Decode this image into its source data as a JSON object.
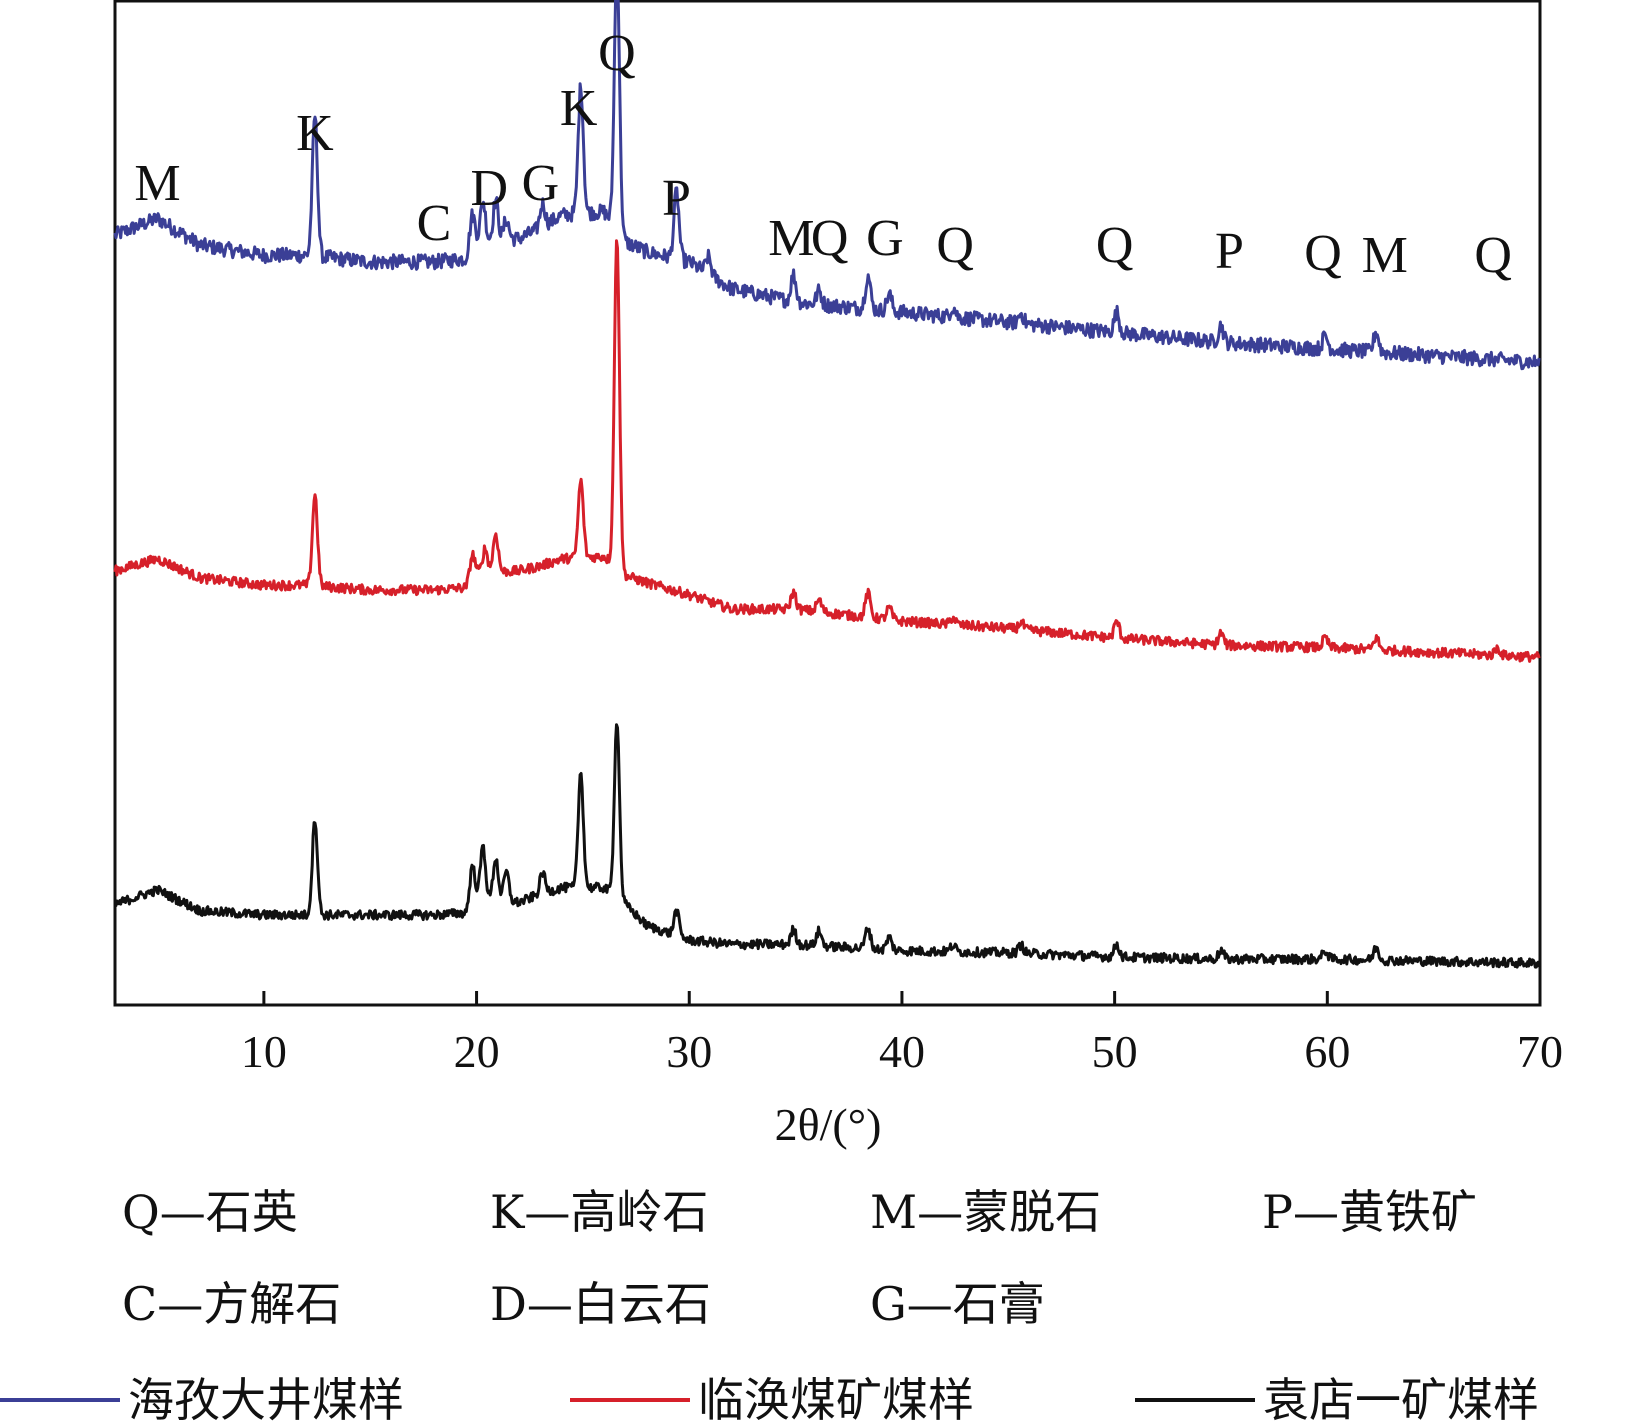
{
  "chart_data": {
    "type": "line",
    "xlabel": "2θ/(°)",
    "ylabel": "",
    "xlim": [
      3,
      70
    ],
    "xticks": [
      10,
      20,
      30,
      40,
      50,
      60,
      70
    ],
    "yticks": false,
    "grid": false,
    "legend_placement": "bottom",
    "colors": {
      "blue": "#3b3f96",
      "red": "#d6202a",
      "black": "#111111"
    },
    "mineral_key": [
      {
        "symbol": "Q",
        "label": "Q—石英"
      },
      {
        "symbol": "K",
        "label": "K—高岭石"
      },
      {
        "symbol": "M",
        "label": "M—蒙脱石"
      },
      {
        "symbol": "P",
        "label": "P—黄铁矿"
      },
      {
        "symbol": "C",
        "label": "C—方解石"
      },
      {
        "symbol": "D",
        "label": "D—白云石"
      },
      {
        "symbol": "G",
        "label": "G—石膏"
      }
    ],
    "peak_annotations": [
      {
        "label": "M",
        "x": 5.0
      },
      {
        "label": "K",
        "x": 12.4
      },
      {
        "label": "C",
        "x": 18.0
      },
      {
        "label": "D",
        "x": 20.6
      },
      {
        "label": "G",
        "x": 23.0
      },
      {
        "label": "K",
        "x": 24.8
      },
      {
        "label": "Q",
        "x": 26.6
      },
      {
        "label": "P",
        "x": 29.4
      },
      {
        "label": "M",
        "x": 34.8
      },
      {
        "label": "Q",
        "x": 36.6
      },
      {
        "label": "G",
        "x": 39.2
      },
      {
        "label": "Q",
        "x": 42.5
      },
      {
        "label": "Q",
        "x": 50.0
      },
      {
        "label": "P",
        "x": 55.4
      },
      {
        "label": "Q",
        "x": 59.8
      },
      {
        "label": "M",
        "x": 62.7
      },
      {
        "label": "Q",
        "x": 67.8
      }
    ],
    "series": [
      {
        "name": "海孜大井煤样",
        "color": "#3b3f96",
        "baseline": [
          [
            3,
            0.08
          ],
          [
            5,
            0.13
          ],
          [
            7,
            0.05
          ],
          [
            10,
            0.02
          ],
          [
            12,
            0.02
          ],
          [
            15,
            0.0
          ],
          [
            18,
            0.0
          ],
          [
            19.5,
            0.01
          ],
          [
            20,
            0.06
          ],
          [
            22,
            0.07
          ],
          [
            23,
            0.1
          ],
          [
            24,
            0.14
          ],
          [
            26,
            0.15
          ],
          [
            27,
            0.06
          ],
          [
            28,
            0.03
          ],
          [
            30,
            0.0
          ],
          [
            32,
            -0.08
          ],
          [
            35,
            -0.12
          ],
          [
            40,
            -0.15
          ],
          [
            45,
            -0.18
          ],
          [
            50,
            -0.21
          ],
          [
            55,
            -0.24
          ],
          [
            60,
            -0.26
          ],
          [
            65,
            -0.28
          ],
          [
            70,
            -0.3
          ]
        ],
        "peaks": [
          [
            12.4,
            0.42
          ],
          [
            19.8,
            0.1
          ],
          [
            20.3,
            0.12
          ],
          [
            20.9,
            0.12
          ],
          [
            21.4,
            0.06
          ],
          [
            23.1,
            0.07
          ],
          [
            24.9,
            0.38
          ],
          [
            26.6,
            0.8
          ],
          [
            29.4,
            0.2
          ],
          [
            30.9,
            0.05
          ],
          [
            34.9,
            0.08
          ],
          [
            36.1,
            0.04
          ],
          [
            38.4,
            0.1
          ],
          [
            39.4,
            0.05
          ],
          [
            42.4,
            0.03
          ],
          [
            45.6,
            0.03
          ],
          [
            50.1,
            0.06
          ],
          [
            55.0,
            0.05
          ],
          [
            59.9,
            0.04
          ],
          [
            62.3,
            0.06
          ]
        ],
        "noise": 0.022
      },
      {
        "name": "临涣煤矿煤样",
        "color": "#d6202a",
        "baseline": [
          [
            3,
            0.08
          ],
          [
            5,
            0.13
          ],
          [
            7,
            0.05
          ],
          [
            10,
            0.02
          ],
          [
            12,
            0.02
          ],
          [
            15,
            0.0
          ],
          [
            18,
            0.0
          ],
          [
            19.5,
            0.01
          ],
          [
            20,
            0.07
          ],
          [
            22,
            0.08
          ],
          [
            23,
            0.1
          ],
          [
            24,
            0.13
          ],
          [
            26,
            0.14
          ],
          [
            27,
            0.06
          ],
          [
            28,
            0.03
          ],
          [
            30,
            -0.02
          ],
          [
            32,
            -0.08
          ],
          [
            35,
            -0.08
          ],
          [
            40,
            -0.13
          ],
          [
            45,
            -0.16
          ],
          [
            50,
            -0.2
          ],
          [
            55,
            -0.23
          ],
          [
            60,
            -0.24
          ],
          [
            65,
            -0.26
          ],
          [
            70,
            -0.28
          ]
        ],
        "peaks": [
          [
            12.4,
            0.38
          ],
          [
            19.8,
            0.1
          ],
          [
            20.4,
            0.1
          ],
          [
            20.9,
            0.16
          ],
          [
            24.9,
            0.32
          ],
          [
            26.6,
            1.38
          ],
          [
            34.9,
            0.07
          ],
          [
            36.1,
            0.05
          ],
          [
            38.4,
            0.1
          ],
          [
            39.4,
            0.05
          ],
          [
            42.4,
            0.03
          ],
          [
            45.6,
            0.03
          ],
          [
            50.1,
            0.07
          ],
          [
            55.0,
            0.05
          ],
          [
            59.9,
            0.04
          ],
          [
            62.3,
            0.05
          ],
          [
            68.0,
            0.03
          ]
        ],
        "noise": 0.02
      },
      {
        "name": "袁店一矿煤样",
        "color": "#111111",
        "baseline": [
          [
            3,
            0.05
          ],
          [
            5,
            0.12
          ],
          [
            7,
            0.02
          ],
          [
            10,
            0.0
          ],
          [
            12,
            0.0
          ],
          [
            15,
            0.0
          ],
          [
            18,
            0.0
          ],
          [
            19.5,
            0.01
          ],
          [
            20,
            0.08
          ],
          [
            22,
            0.06
          ],
          [
            23,
            0.1
          ],
          [
            24,
            0.13
          ],
          [
            26,
            0.13
          ],
          [
            27,
            0.05
          ],
          [
            28,
            -0.05
          ],
          [
            30,
            -0.12
          ],
          [
            32,
            -0.14
          ],
          [
            35,
            -0.14
          ],
          [
            40,
            -0.17
          ],
          [
            45,
            -0.18
          ],
          [
            50,
            -0.2
          ],
          [
            55,
            -0.21
          ],
          [
            60,
            -0.21
          ],
          [
            65,
            -0.22
          ],
          [
            70,
            -0.23
          ]
        ],
        "peaks": [
          [
            12.4,
            0.46
          ],
          [
            19.8,
            0.18
          ],
          [
            20.3,
            0.25
          ],
          [
            20.9,
            0.2
          ],
          [
            21.4,
            0.14
          ],
          [
            23.1,
            0.1
          ],
          [
            24.9,
            0.55
          ],
          [
            26.6,
            0.85
          ],
          [
            29.4,
            0.12
          ],
          [
            34.9,
            0.07
          ],
          [
            36.1,
            0.07
          ],
          [
            38.4,
            0.1
          ],
          [
            39.4,
            0.06
          ],
          [
            42.4,
            0.03
          ],
          [
            45.6,
            0.04
          ],
          [
            50.1,
            0.06
          ],
          [
            55.0,
            0.04
          ],
          [
            59.9,
            0.04
          ],
          [
            62.3,
            0.06
          ]
        ],
        "noise": 0.022
      }
    ]
  }
}
